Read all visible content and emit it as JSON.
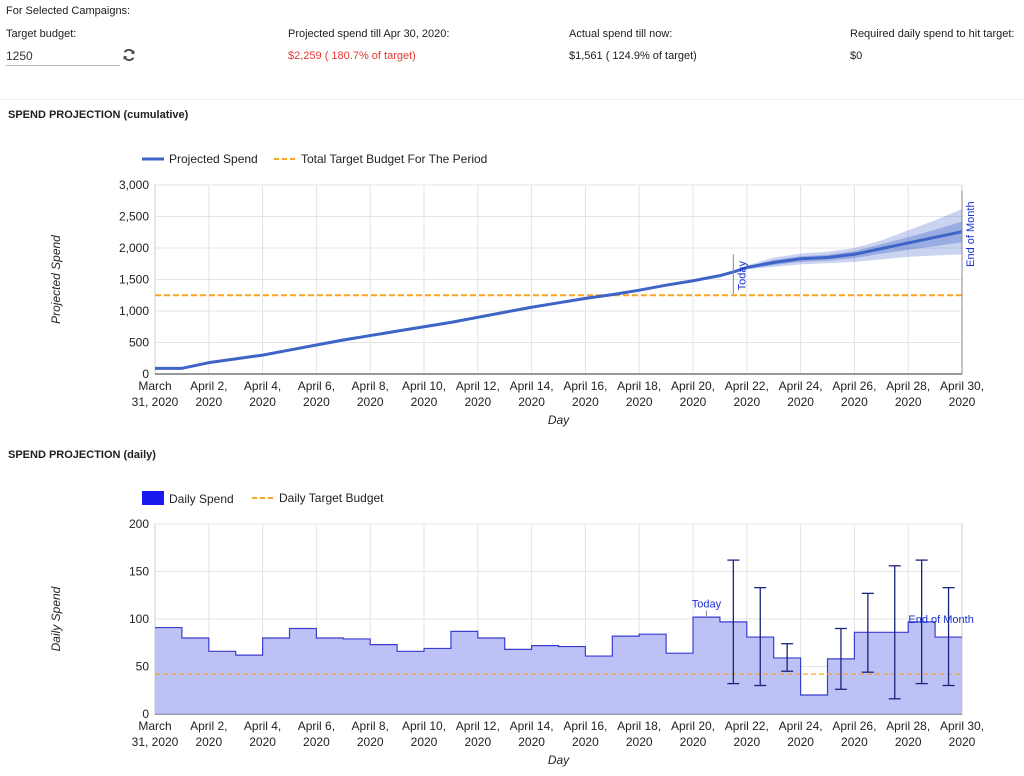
{
  "header": {
    "selected_label": "For Selected Campaigns:",
    "target_budget_label": "Target budget:",
    "target_budget_value": "1250",
    "projected_label": "Projected spend till Apr 30, 2020:",
    "projected_value": "$2,259 ( 180.7% of target)",
    "actual_label": "Actual spend till now:",
    "actual_value": "$1,561 ( 124.9% of target)",
    "required_label": "Required daily spend to hit target:",
    "required_value": "$0",
    "refresh_icon": "refresh-icon"
  },
  "colors": {
    "series_blue": "#3f64c8",
    "target_orange": "#f5a623",
    "projected_red": "#e53935",
    "daily_fill": "#b2b6f3",
    "daily_line": "#3b3fd1",
    "annotation_blue": "#1b2fd6"
  },
  "cumulative_title": "SPEND PROJECTION (cumulative)",
  "daily_title": "SPEND PROJECTION (daily)",
  "chart_data": [
    {
      "type": "line",
      "title": "SPEND PROJECTION (cumulative)",
      "xlabel": "Day",
      "ylabel": "Projected Spend",
      "ylim": [
        0,
        3000
      ],
      "yticks": [
        0,
        500,
        1000,
        1500,
        2000,
        2500,
        3000
      ],
      "ytick_labels": [
        "0",
        "500",
        "1,000",
        "1,500",
        "2,000",
        "2,500",
        "3,000"
      ],
      "xtick_labels": [
        [
          "March",
          "31, 2020"
        ],
        [
          "April 2,",
          "2020"
        ],
        [
          "April 4,",
          "2020"
        ],
        [
          "April 6,",
          "2020"
        ],
        [
          "April 8,",
          "2020"
        ],
        [
          "April 10,",
          "2020"
        ],
        [
          "April 12,",
          "2020"
        ],
        [
          "April 14,",
          "2020"
        ],
        [
          "April 16,",
          "2020"
        ],
        [
          "April 18,",
          "2020"
        ],
        [
          "April 20,",
          "2020"
        ],
        [
          "April 22,",
          "2020"
        ],
        [
          "April 24,",
          "2020"
        ],
        [
          "April 26,",
          "2020"
        ],
        [
          "April 28,",
          "2020"
        ],
        [
          "April 30,",
          "2020"
        ]
      ],
      "grid": true,
      "legend": "top-left",
      "series": [
        {
          "name": "Projected Spend",
          "x": [
            0,
            1,
            2,
            3,
            4,
            5,
            6,
            7,
            8,
            9,
            10,
            11,
            12,
            13,
            14,
            15,
            16,
            17,
            18,
            19,
            20,
            21,
            21.5,
            22,
            23,
            24,
            25,
            26,
            27,
            28,
            29,
            30
          ],
          "y": [
            90,
            90,
            180,
            240,
            300,
            380,
            460,
            540,
            610,
            680,
            750,
            820,
            900,
            980,
            1060,
            1130,
            1200,
            1260,
            1330,
            1410,
            1480,
            1561,
            1620,
            1690,
            1770,
            1830,
            1850,
            1900,
            1990,
            2080,
            2170,
            2259
          ]
        },
        {
          "name": "Total Target Budget For The Period",
          "x": [
            0,
            30
          ],
          "y": [
            1250,
            1250
          ]
        }
      ],
      "forecast_band": {
        "x": [
          21.5,
          22,
          23,
          24,
          25,
          26,
          27,
          28,
          29,
          30
        ],
        "outer_low": [
          1620,
          1660,
          1700,
          1740,
          1760,
          1780,
          1820,
          1860,
          1880,
          1900
        ],
        "outer_high": [
          1620,
          1720,
          1850,
          1910,
          1940,
          2000,
          2120,
          2280,
          2440,
          2620
        ],
        "inner_low": [
          1620,
          1670,
          1730,
          1780,
          1800,
          1840,
          1910,
          1970,
          2030,
          2090
        ],
        "inner_high": [
          1620,
          1710,
          1810,
          1870,
          1890,
          1950,
          2060,
          2170,
          2290,
          2420
        ]
      },
      "annotations": [
        {
          "x": 21.5,
          "text": "Today"
        },
        {
          "x": 30,
          "text": "End of Month"
        }
      ]
    },
    {
      "type": "area",
      "title": "SPEND PROJECTION (daily)",
      "xlabel": "Day",
      "ylabel": "Daily Spend",
      "ylim": [
        0,
        200
      ],
      "yticks": [
        0,
        50,
        100,
        150,
        200
      ],
      "ytick_labels": [
        "0",
        "50",
        "100",
        "150",
        "200"
      ],
      "xtick_labels": [
        [
          "March",
          "31, 2020"
        ],
        [
          "April 2,",
          "2020"
        ],
        [
          "April 4,",
          "2020"
        ],
        [
          "April 6,",
          "2020"
        ],
        [
          "April 8,",
          "2020"
        ],
        [
          "April 10,",
          "2020"
        ],
        [
          "April 12,",
          "2020"
        ],
        [
          "April 14,",
          "2020"
        ],
        [
          "April 16,",
          "2020"
        ],
        [
          "April 18,",
          "2020"
        ],
        [
          "April 20,",
          "2020"
        ],
        [
          "April 22,",
          "2020"
        ],
        [
          "April 24,",
          "2020"
        ],
        [
          "April 26,",
          "2020"
        ],
        [
          "April 28,",
          "2020"
        ],
        [
          "April 30,",
          "2020"
        ]
      ],
      "grid": true,
      "legend": "top-left",
      "series": [
        {
          "name": "Daily Spend",
          "x": [
            0,
            1,
            2,
            3,
            4,
            5,
            6,
            7,
            8,
            9,
            10,
            11,
            12,
            13,
            14,
            15,
            16,
            17,
            18,
            19,
            20,
            21,
            22,
            23,
            24,
            25,
            26,
            27,
            28,
            29
          ],
          "values": [
            91,
            80,
            66,
            62,
            80,
            90,
            80,
            79,
            73,
            66,
            69,
            87,
            80,
            68,
            72,
            71,
            61,
            82,
            84,
            64,
            102,
            97,
            81,
            59,
            20,
            58,
            86,
            86,
            97,
            81
          ]
        },
        {
          "name": "Daily Target Budget",
          "x": [
            0,
            30
          ],
          "y": [
            42,
            42
          ]
        }
      ],
      "error_bars": [
        {
          "x": 21.5,
          "low": 32,
          "high": 162
        },
        {
          "x": 22.5,
          "low": 30,
          "high": 133
        },
        {
          "x": 23.5,
          "low": 45,
          "high": 74
        },
        {
          "x": 25.5,
          "low": 26,
          "high": 90
        },
        {
          "x": 26.5,
          "low": 44,
          "high": 127
        },
        {
          "x": 27.5,
          "low": 16,
          "high": 156
        },
        {
          "x": 28.5,
          "low": 32,
          "high": 162
        },
        {
          "x": 29.5,
          "low": 30,
          "high": 133
        }
      ],
      "annotations": [
        {
          "x": 20.5,
          "text": "Today"
        },
        {
          "x": 29,
          "text": "End of Month"
        }
      ]
    }
  ]
}
